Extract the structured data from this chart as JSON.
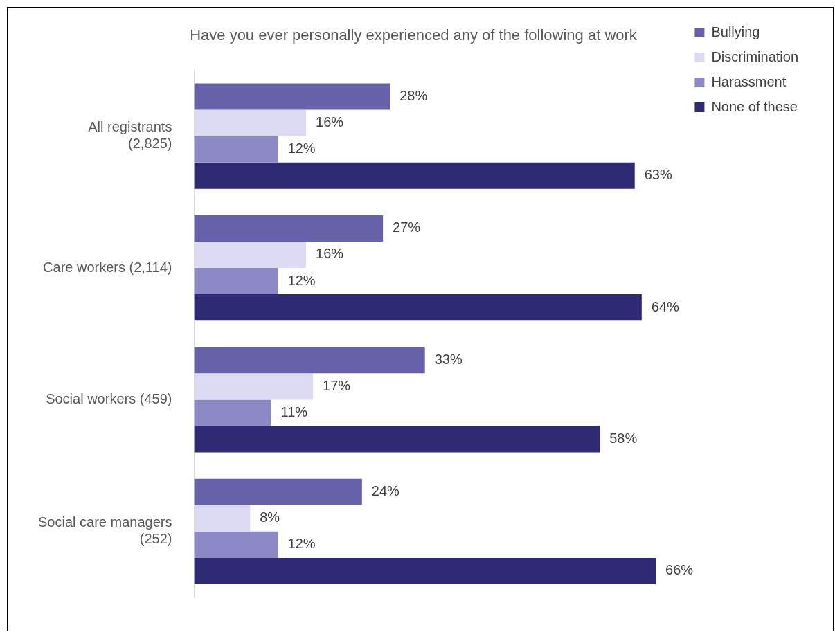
{
  "chart_data": {
    "type": "bar",
    "orientation": "horizontal",
    "title": "Have you ever personally experienced any of the following at work",
    "categories": [
      "All registrants (2,825)",
      "Care workers (2,114)",
      "Social workers (459)",
      "Social care managers (252)"
    ],
    "series": [
      {
        "name": "Bullying",
        "color": "#6661a8",
        "values": [
          28,
          27,
          33,
          24
        ],
        "value_labels": [
          "28%",
          "27%",
          "33%",
          "24%"
        ]
      },
      {
        "name": "Discrimination",
        "color": "#dcdaf2",
        "values": [
          16,
          16,
          17,
          8
        ],
        "value_labels": [
          "16%",
          "16%",
          "17%",
          "8%"
        ]
      },
      {
        "name": "Harassment",
        "color": "#8c89c6",
        "values": [
          12,
          12,
          11,
          12
        ],
        "value_labels": [
          "12%",
          "12%",
          "11%",
          "12%"
        ]
      },
      {
        "name": "None of these",
        "color": "#2e2a74",
        "values": [
          63,
          64,
          58,
          66
        ],
        "value_labels": [
          "63%",
          "64%",
          "58%",
          "66%"
        ]
      }
    ],
    "legend": "top right",
    "grid": false
  }
}
